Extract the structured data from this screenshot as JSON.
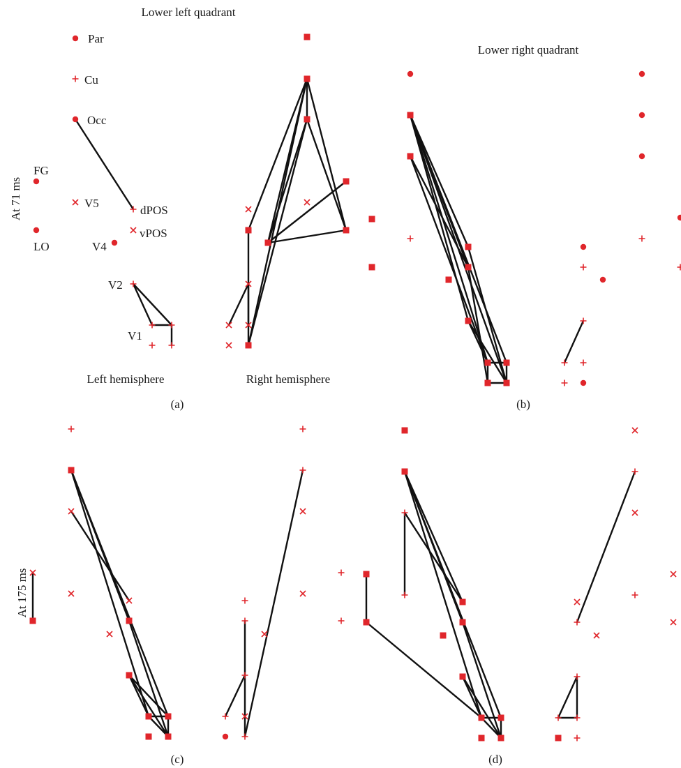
{
  "colors": {
    "node": "#e0262b",
    "edge": "#111111",
    "text": "#1a1a1a"
  },
  "texts": {
    "lower_left_quadrant": "Lower left quadrant",
    "lower_right_quadrant": "Lower right quadrant",
    "at_71": "At 71 ms",
    "at_175": "At 175 ms",
    "left_hemisphere": "Left hemisphere",
    "right_hemisphere": "Right hemisphere",
    "panel_a": "(a)",
    "panel_b": "(b)",
    "panel_c": "(c)",
    "panel_d": "(d)",
    "region_par": "Par",
    "region_cu": "Cu",
    "region_occ": "Occ",
    "region_fg": "FG",
    "region_v5": "V5",
    "region_dpos": "dPOS",
    "region_vpos": "vPOS",
    "region_lo": "LO",
    "region_v4": "V4",
    "region_v2": "V2",
    "region_v1": "V1"
  },
  "marker_legend": {
    "circle": "region node (circle marker)",
    "square": "connected region node (square marker)",
    "plus": "region node (plus marker)",
    "cross": "region node (cross marker)"
  }
}
